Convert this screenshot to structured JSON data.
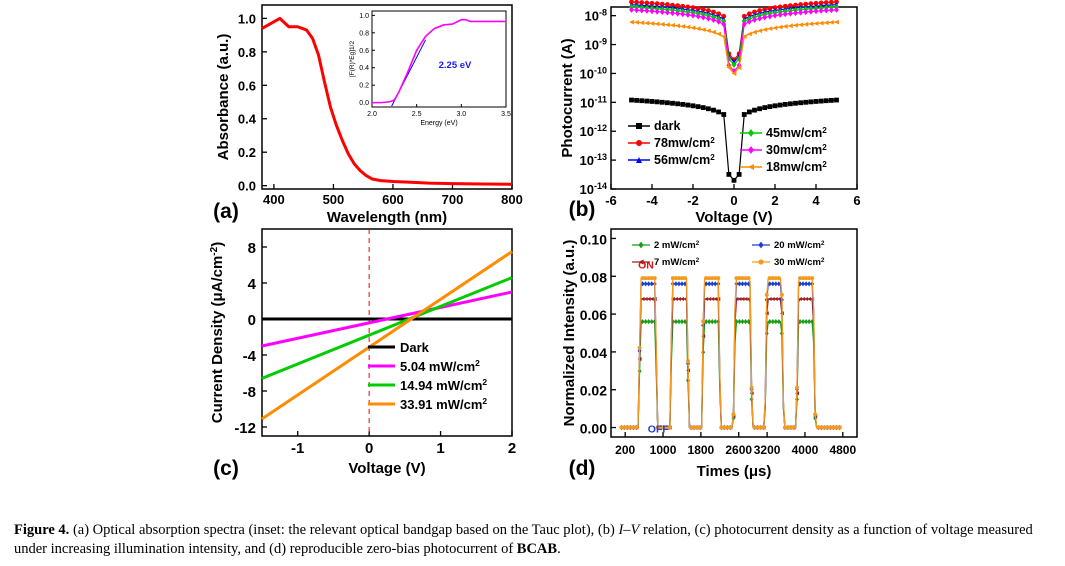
{
  "panels": [
    {
      "id": "a",
      "letter": "(a)",
      "xlabel": "Wavelength (nm)",
      "ylabel": "Absorbance (a.u.)",
      "xticks": [
        "400",
        "500",
        "600",
        "700",
        "800"
      ],
      "yticks": [
        "0.0",
        "0.2",
        "0.4",
        "0.6",
        "0.8",
        "1.0"
      ],
      "inset": {
        "ylabel": "[F(R)*Eg]1/2",
        "xlabel": "Energy (eV)",
        "xticks": [
          "2.0",
          "2.5",
          "3.0",
          "3.5"
        ],
        "yticks": [
          "0.0",
          "0.2",
          "0.4",
          "0.6",
          "0.8",
          "1.0"
        ],
        "annotation": "2.25 eV"
      }
    },
    {
      "id": "b",
      "letter": "(b)",
      "xlabel": "Voltage (V)",
      "ylabel": "Photocurrent (A)",
      "xticks": [
        "-6",
        "-4",
        "-2",
        "0",
        "2",
        "4",
        "6"
      ],
      "ytick_base": "10",
      "ytick_exponents": [
        "-8",
        "-9",
        "-10",
        "-11",
        "-12",
        "-13",
        "-14"
      ],
      "legend": [
        "dark",
        "78mw/cm2",
        "56mw/cm2",
        "45mw/cm2",
        "30mw/cm2",
        "18mw/cm2"
      ]
    },
    {
      "id": "c",
      "letter": "(c)",
      "xlabel": "Voltage (V)",
      "ylabel": "Current Density (μA/cm-2)",
      "xticks": [
        "-1",
        "0",
        "1",
        "2"
      ],
      "yticks": [
        "8",
        "4",
        "0",
        "-4",
        "-8",
        "-12"
      ],
      "legend": [
        "Dark",
        "5.04 mW/cm2",
        "14.94 mW/cm2",
        "33.91 mW/cm2"
      ]
    },
    {
      "id": "d",
      "letter": "(d)",
      "xlabel": "Times (μs)",
      "ylabel": "Normalized Intensity (a.u.)",
      "xticks": [
        "200",
        "1000",
        "1800",
        "2600",
        "3200",
        "4000",
        "4800"
      ],
      "yticks": [
        "0.10",
        "0.08",
        "0.06",
        "0.04",
        "0.02",
        "0.00"
      ],
      "legend": [
        "2 mW/cm2",
        "7 mW/cm2",
        "20 mW/cm2",
        "30 mW/cm2"
      ],
      "on_label": "ON",
      "off_label": "OFF"
    }
  ],
  "chart_data": [
    {
      "type": "line",
      "panel": "a",
      "xlabel": "Wavelength (nm)",
      "ylabel": "Absorbance (a.u.)",
      "xlim": [
        380,
        800
      ],
      "ylim": [
        -0.02,
        1.08
      ],
      "series": [
        {
          "x": [
            380,
            395,
            410,
            425,
            440,
            455,
            465,
            475,
            485,
            495,
            505,
            515,
            525,
            535,
            545,
            555,
            565,
            580,
            600,
            630,
            660,
            700,
            750,
            800
          ],
          "y": [
            0.94,
            0.97,
            1.0,
            0.95,
            0.95,
            0.93,
            0.88,
            0.78,
            0.62,
            0.47,
            0.36,
            0.27,
            0.19,
            0.13,
            0.09,
            0.06,
            0.04,
            0.03,
            0.025,
            0.02,
            0.015,
            0.012,
            0.01,
            0.008
          ],
          "color": "#ff0000"
        }
      ]
    },
    {
      "type": "line",
      "panel": "a-inset",
      "xlabel": "Energy (eV)",
      "ylabel": "[F(R)*Eg]1/2",
      "xlim": [
        2.0,
        3.5
      ],
      "ylim": [
        -0.05,
        1.05
      ],
      "series": [
        {
          "x": [
            2.0,
            2.1,
            2.2,
            2.25,
            2.3,
            2.4,
            2.5,
            2.6,
            2.7,
            2.8,
            2.9,
            3.0,
            3.05,
            3.1,
            3.2,
            3.3,
            3.4,
            3.5
          ],
          "y": [
            0.0,
            0.0,
            0.01,
            0.03,
            0.12,
            0.35,
            0.6,
            0.76,
            0.85,
            0.89,
            0.9,
            0.95,
            0.95,
            0.93,
            0.93,
            0.93,
            0.93,
            0.93
          ],
          "color": "#ff00ff"
        }
      ],
      "fit_line": {
        "x": [
          2.22,
          2.6
        ],
        "y": [
          -0.04,
          0.72
        ],
        "color": "#0000ff"
      },
      "annotation": "2.25 eV"
    },
    {
      "type": "scatter",
      "panel": "b",
      "xlabel": "Voltage (V)",
      "ylabel": "Photocurrent (A)",
      "xlim": [
        -6,
        6
      ],
      "ylim_log10": [
        -14,
        -7.7
      ],
      "yscale": "log",
      "series": [
        {
          "name": "dark",
          "color": "#000000",
          "marker": "square",
          "amplitude": 1.2e-11,
          "min": 2e-14
        },
        {
          "name": "78mw/cm2",
          "color": "#ff0000",
          "marker": "circle",
          "amplitude": 3e-08,
          "min": 3e-10
        },
        {
          "name": "56mw/cm2",
          "color": "#0000ff",
          "marker": "triangle",
          "amplitude": 2.4e-08,
          "min": 2.5e-10
        },
        {
          "name": "45mw/cm2",
          "color": "#00cc00",
          "marker": "diamond",
          "amplitude": 2e-08,
          "min": 2e-10
        },
        {
          "name": "30mw/cm2",
          "color": "#ff00ff",
          "marker": "diamond",
          "amplitude": 1.6e-08,
          "min": 1.2e-10
        },
        {
          "name": "18mw/cm2",
          "color": "#ff8c00",
          "marker": "triangle-left",
          "amplitude": 6e-09,
          "min": 1e-10
        }
      ]
    },
    {
      "type": "line",
      "panel": "c",
      "xlabel": "Voltage (V)",
      "ylabel": "Current Density (μA/cm-2)",
      "xlim": [
        -1.5,
        2.0
      ],
      "ylim": [
        -13,
        10
      ],
      "series": [
        {
          "name": "Dark",
          "color": "#000000",
          "x": [
            -1.5,
            2.0
          ],
          "y": [
            0.0,
            0.0
          ]
        },
        {
          "name": "5.04 mW/cm2",
          "color": "#ff00ff",
          "x": [
            -1.5,
            2.0
          ],
          "y": [
            -3.0,
            3.0
          ]
        },
        {
          "name": "14.94 mW/cm2",
          "color": "#00cc00",
          "x": [
            -1.5,
            2.0
          ],
          "y": [
            -6.6,
            4.6
          ]
        },
        {
          "name": "33.91 mW/cm2",
          "color": "#ff8c00",
          "x": [
            -1.5,
            2.0
          ],
          "y": [
            -11.1,
            7.5
          ]
        }
      ],
      "vline": {
        "x": 0,
        "color": "#ff0000",
        "style": "dashed"
      }
    },
    {
      "type": "line",
      "panel": "d",
      "xlabel": "Times (μs)",
      "ylabel": "Normalized Intensity (a.u.)",
      "xlim": [
        -100,
        5100
      ],
      "ylim": [
        -0.005,
        0.105
      ],
      "cycles": {
        "first_on": 480,
        "period": 668,
        "on_duration": 400,
        "count": 6
      },
      "series": [
        {
          "name": "2 mW/cm2",
          "color": "#1a9e1a",
          "marker": "diamond",
          "plateau": 0.056
        },
        {
          "name": "7 mW/cm2",
          "color": "#a01e1e",
          "marker": "triangle-left",
          "plateau": 0.068
        },
        {
          "name": "20 mW/cm2",
          "color": "#1b3fd1",
          "marker": "diamond",
          "plateau": 0.076
        },
        {
          "name": "30 mW/cm2",
          "color": "#f59a1f",
          "marker": "circle",
          "plateau": 0.079
        }
      ]
    }
  ],
  "caption": {
    "label": "Figure 4.",
    "text_1": " (a) Optical absorption spectra (inset: the relevant optical bandgap based on the Tauc plot), (b) ",
    "text_iv": "I–V",
    "text_2": " relation, (c) photocurrent density as a function of voltage measured under increasing illumination intensity, and (d) reproducible zero-bias photocurrent of ",
    "compound": "BCAB",
    "text_3": "."
  }
}
